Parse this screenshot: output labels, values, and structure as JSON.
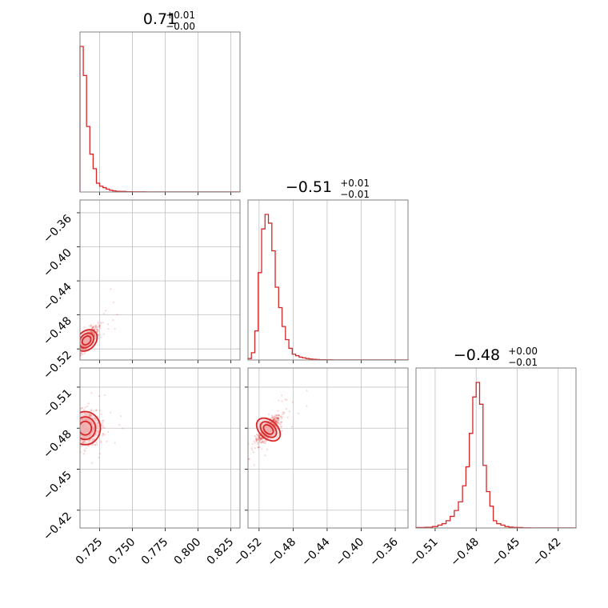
{
  "colors": {
    "accent": "#d62728",
    "fill_light": "#f4b6b6",
    "grid": "#c0c0c0",
    "frame": "#808080"
  },
  "chart_data": {
    "type": "corner",
    "titles": [
      {
        "value": "0.71",
        "plus": "+0.01",
        "minus": "−0.00"
      },
      {
        "value": "−0.51",
        "plus": "+0.01",
        "minus": "−0.01"
      },
      {
        "value": "−0.48",
        "plus": "+0.00",
        "minus": "−0.01"
      }
    ],
    "params": [
      {
        "range": [
          0.71,
          0.832
        ],
        "ticks": [
          0.725,
          0.75,
          0.775,
          0.8,
          0.825
        ],
        "tick_labels": [
          "0.725",
          "0.750",
          "0.775",
          "0.800",
          "0.825"
        ]
      },
      {
        "range": [
          -0.533,
          -0.345
        ],
        "ticks": [
          -0.52,
          -0.48,
          -0.44,
          -0.4,
          -0.36
        ],
        "tick_labels": [
          "−0.52",
          "−0.48",
          "−0.44",
          "−0.40",
          "−0.36"
        ]
      },
      {
        "range": [
          -0.427,
          -0.524
        ],
        "axis_range": [
          -0.524,
          -0.407
        ],
        "ticks": [
          -0.51,
          -0.48,
          -0.45,
          -0.42
        ],
        "tick_labels": [
          "−0.51",
          "−0.48",
          "−0.45",
          "−0.42"
        ],
        "row_ticks": [
          -0.42,
          -0.45,
          -0.48,
          -0.51
        ],
        "row_range": [
          -0.407,
          -0.524
        ]
      }
    ],
    "hist_0": {
      "edges": [
        0.71,
        0.7125,
        0.715,
        0.7175,
        0.72,
        0.7225,
        0.725,
        0.7275,
        0.73,
        0.7325,
        0.735,
        0.7375,
        0.74,
        0.745,
        0.75,
        0.76,
        0.832
      ],
      "counts": [
        100,
        80,
        45,
        26,
        16,
        6,
        4,
        3,
        2,
        1.2,
        0.8,
        0.5,
        0.4,
        0.2,
        0.1,
        0.05
      ]
    },
    "hist_1": {
      "edges": [
        -0.533,
        -0.529,
        -0.525,
        -0.521,
        -0.517,
        -0.513,
        -0.509,
        -0.505,
        -0.501,
        -0.497,
        -0.493,
        -0.489,
        -0.485,
        -0.481,
        -0.477,
        -0.473,
        -0.469,
        -0.465,
        -0.461,
        -0.457,
        -0.453,
        -0.449,
        -0.445,
        -0.441,
        -0.437,
        -0.433,
        -0.345
      ],
      "counts": [
        1,
        5,
        20,
        60,
        90,
        100,
        94,
        75,
        50,
        36,
        23,
        14,
        8,
        4,
        3,
        2,
        1.5,
        1,
        0.7,
        0.5,
        0.3,
        0.2,
        0.2,
        0.1,
        0.1,
        0.05
      ]
    },
    "hist_2": {
      "edges": [
        -0.524,
        -0.5175,
        -0.512,
        -0.508,
        -0.505,
        -0.502,
        -0.499,
        -0.496,
        -0.493,
        -0.49,
        -0.4875,
        -0.485,
        -0.4825,
        -0.48,
        -0.4775,
        -0.475,
        -0.4725,
        -0.47,
        -0.4675,
        -0.465,
        -0.462,
        -0.459,
        -0.456,
        -0.453,
        -0.45,
        -0.446,
        -0.44,
        -0.407
      ],
      "counts": [
        0.3,
        0.5,
        1,
        2,
        3,
        5,
        8,
        12,
        18,
        29,
        42,
        65,
        90,
        100,
        85,
        43,
        25,
        15,
        5,
        3,
        2,
        1,
        0.6,
        0.4,
        0.3,
        0.1,
        0.05
      ]
    },
    "scatter_10": {
      "center": [
        0.715,
        -0.51
      ],
      "spread": [
        0.004,
        0.008
      ],
      "corr": 0.8,
      "n": 700
    },
    "scatter_20": {
      "center": [
        0.714,
        -0.48
      ],
      "spread": [
        0.005,
        0.0055
      ],
      "corr": 0.0,
      "n": 800
    },
    "scatter_21": {
      "center": [
        -0.509,
        -0.479
      ],
      "spread": [
        0.007,
        0.005
      ],
      "corr": -0.8,
      "n": 700
    }
  }
}
